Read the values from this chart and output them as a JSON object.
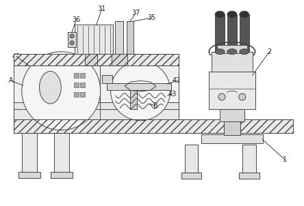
{
  "bg_color": "#ffffff",
  "line_color": "#444444",
  "label_color": "#222222",
  "figsize": [
    4.44,
    3.02
  ],
  "dpi": 100
}
